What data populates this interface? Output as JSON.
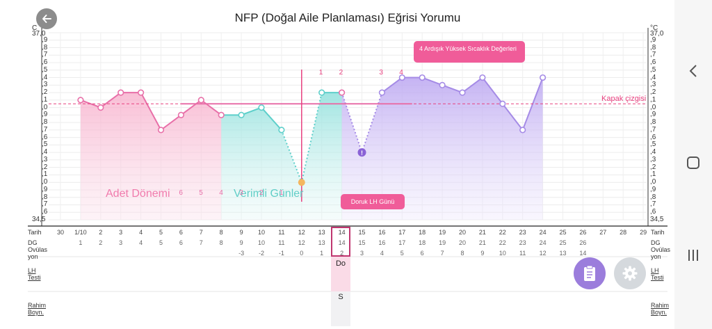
{
  "header": {
    "title": "NFP (Doğal Aile Planlaması) Eğrisi Yorumu"
  },
  "axis": {
    "top_left": "37,0",
    "bottom_left": "34,5",
    "top_right": "37,0",
    "bottom_right": "34,5",
    "unit_left": "C",
    "unit_right": "°C",
    "ticks": [
      ",9",
      ",8",
      ",7",
      ",6",
      ",5",
      ",4",
      ",3",
      ",2",
      ",1",
      ",0",
      ",9",
      ",8",
      ",7",
      ",6",
      ",5",
      ",4",
      ",3",
      ",2",
      ",1",
      ",0",
      ",9",
      ",8",
      ",7",
      ",6"
    ]
  },
  "chart_data": {
    "type": "line",
    "x": [
      "30",
      "1/10",
      "2",
      "3",
      "4",
      "5",
      "6",
      "7",
      "8",
      "9",
      "10",
      "11",
      "12",
      "13",
      "14",
      "15",
      "16",
      "17",
      "18",
      "19",
      "20",
      "21",
      "22",
      "23",
      "24",
      "25",
      "26",
      "27",
      "28",
      "29"
    ],
    "series": [
      {
        "values": [
          null,
          36.1,
          36.0,
          36.2,
          36.2,
          35.7,
          35.9,
          36.1,
          35.9,
          35.9,
          36.0,
          35.7,
          35.0,
          36.2,
          36.2,
          35.4,
          36.2,
          36.4,
          36.4,
          36.3,
          36.2,
          36.4,
          36.05,
          35.7,
          36.4,
          null,
          null,
          null,
          null,
          null
        ]
      }
    ],
    "ylim": [
      34.5,
      37.0
    ],
    "cover_line": 36.05,
    "phase_colors": {
      "menstruation": "#f7b6cf",
      "fertile": "#9de3e0",
      "luteal": "#c9b9f3"
    }
  },
  "annotations": {
    "cover_line_label": "Kapak çizgisi",
    "high_temp_label": "4 Ardışık Yüksek Sıcaklık Değerleri",
    "lh_peak_label": "Doruk LH Günü",
    "period_label": "Adet Dönemi",
    "fertile_label": "Verimli Günler",
    "high_counts": [
      "1",
      "2",
      "3",
      "4"
    ],
    "low_counts": [
      "6",
      "5",
      "4",
      "3",
      "2",
      "1"
    ]
  },
  "rows": {
    "date_label": "Tarih",
    "cycle_label": "DG",
    "ovulation_label": "Ovülasyon",
    "lh_label": "LH Testi",
    "cervix_label": "Rahim Boyn.",
    "cycle_days": [
      "",
      "1",
      "2",
      "3",
      "4",
      "5",
      "6",
      "7",
      "8",
      "9",
      "10",
      "11",
      "12",
      "13",
      "14",
      "15",
      "16",
      "17",
      "18",
      "19",
      "20",
      "21",
      "22",
      "23",
      "24",
      "25",
      "26",
      "",
      "",
      ""
    ],
    "ovulation_days": [
      "",
      "",
      "",
      "",
      "",
      "",
      "",
      "",
      "",
      "-3",
      "-2",
      "-1",
      "0",
      "1",
      "2",
      "3",
      "4",
      "5",
      "6",
      "7",
      "8",
      "9",
      "10",
      "11",
      "12",
      "13",
      "14",
      "",
      "",
      ""
    ],
    "lh_value": "Do",
    "cervix_value": "S"
  },
  "colors": {
    "accent": "#f0609a",
    "purple": "#a58be6",
    "teal": "#5dcfca",
    "pink": "#e86fa8"
  }
}
